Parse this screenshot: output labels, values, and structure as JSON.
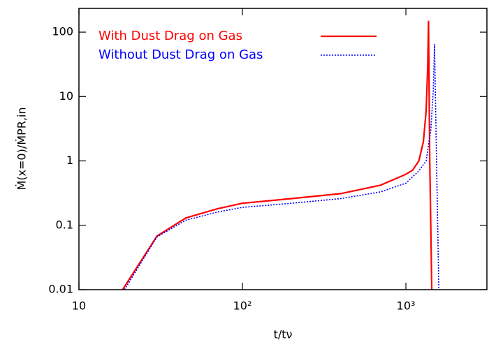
{
  "chart_data": {
    "type": "line",
    "xlabel": "t/tν",
    "ylabel": "Ṁ(x=0)/ṀPR,in",
    "xscale": "log",
    "yscale": "log",
    "xlim": [
      10,
      3130
    ],
    "ylim": [
      0.01,
      234
    ],
    "xticks": [
      10,
      {
        "value": 100,
        "label": "10²"
      },
      {
        "value": 1000,
        "label": "10³"
      }
    ],
    "yticks": [
      0.01,
      0.1,
      1,
      10,
      100
    ],
    "legend": "top-left",
    "series": [
      {
        "name": "With Dust Drag on Gas",
        "color": "#ff0000",
        "dash": "solid",
        "x": [
          18.5,
          30,
          45,
          70,
          100,
          200,
          400,
          700,
          1000,
          1100,
          1200,
          1280,
          1330,
          1360,
          1375,
          1400,
          1440
        ],
        "values": [
          0.01,
          0.068,
          0.13,
          0.18,
          0.22,
          0.26,
          0.31,
          0.42,
          0.62,
          0.72,
          1.0,
          2.0,
          6,
          30,
          150,
          1,
          0.01
        ]
      },
      {
        "name": "Without Dust Drag on Gas",
        "color": "#0000ff",
        "dash": "dotted",
        "x": [
          19,
          30,
          45,
          70,
          100,
          200,
          400,
          700,
          1000,
          1200,
          1330,
          1420,
          1470,
          1497,
          1540,
          1590
        ],
        "values": [
          0.01,
          0.066,
          0.12,
          0.16,
          0.19,
          0.22,
          0.26,
          0.33,
          0.45,
          0.7,
          1.0,
          3,
          12,
          65,
          1,
          0.01
        ]
      }
    ]
  }
}
